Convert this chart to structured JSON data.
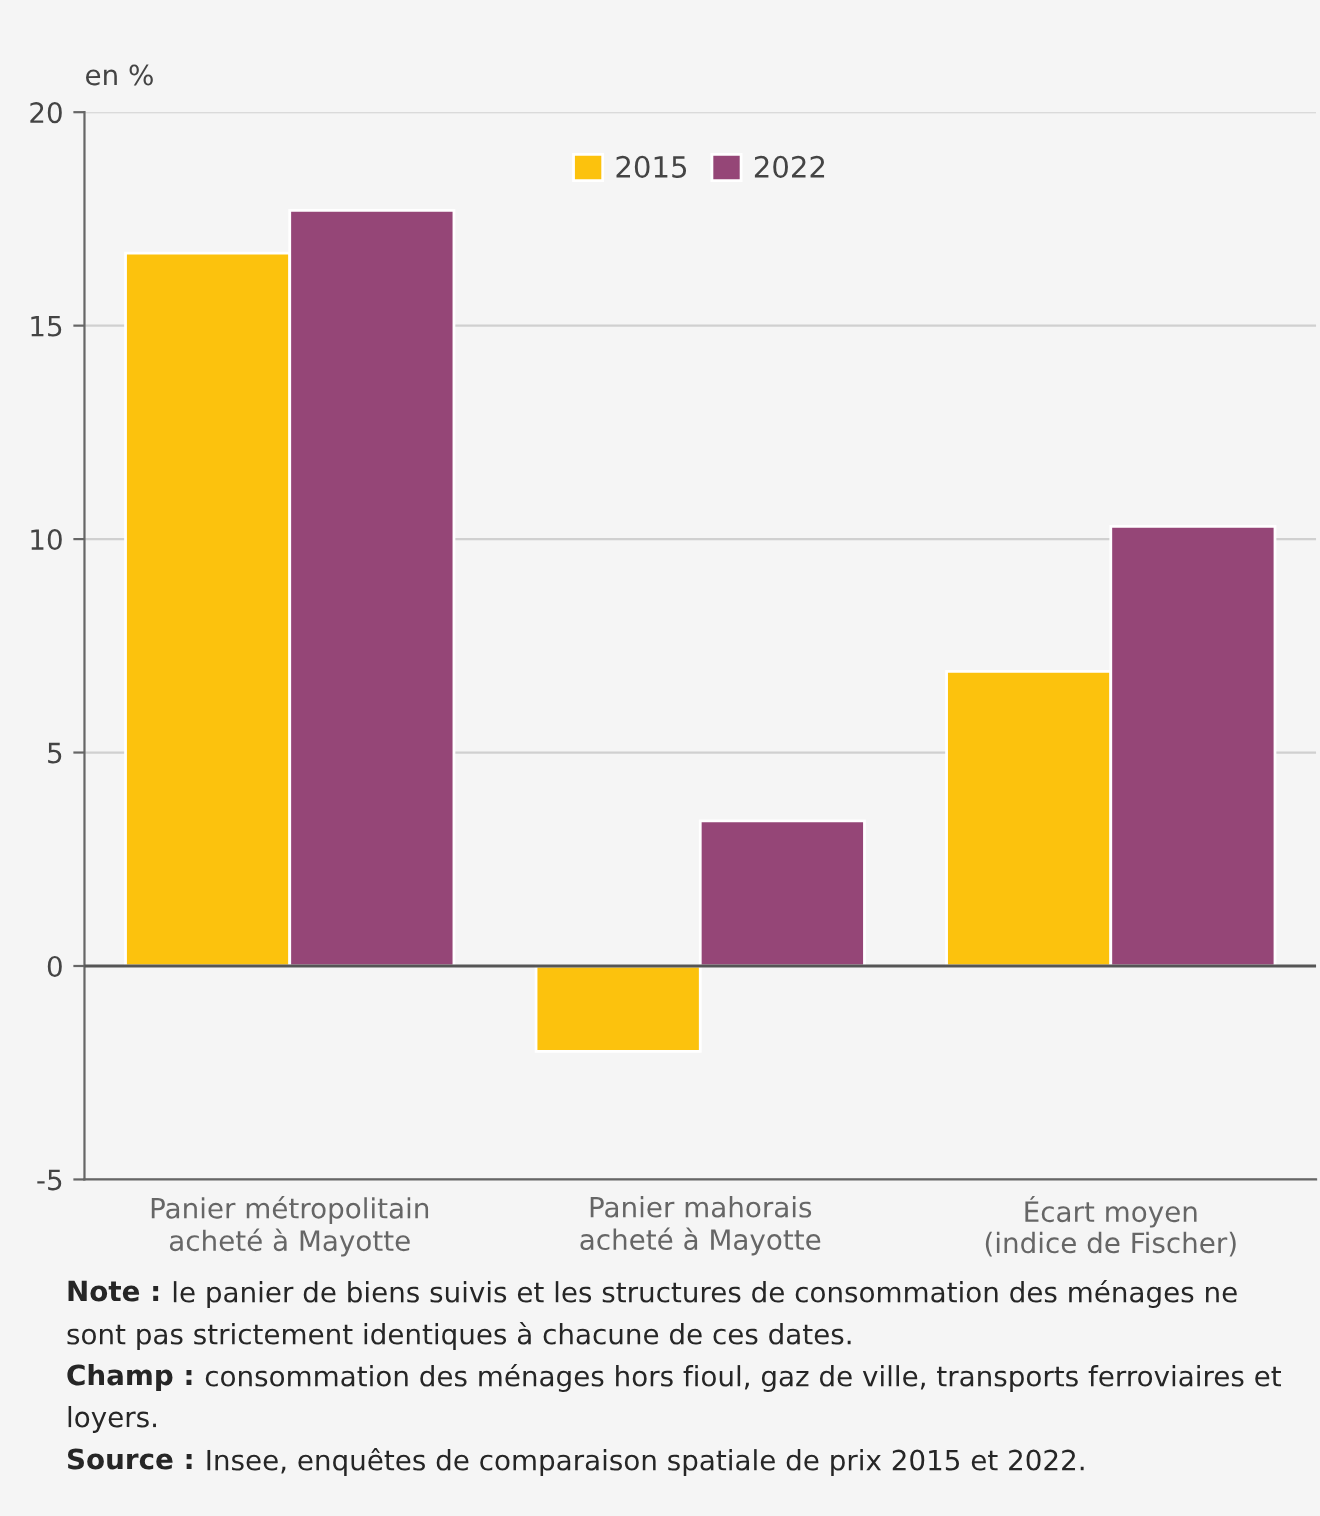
{
  "chart_data": {
    "type": "bar",
    "ylabel": "en %",
    "categories": [
      "Panier métropolitain\nacheté à Mayotte",
      "Panier mahorais\nacheté à Mayotte",
      "Écart moyen\n(indice de Fischer)"
    ],
    "series": [
      {
        "name": "2015",
        "color": "#fcc20d",
        "values": [
          16.7,
          -2.0,
          6.9
        ]
      },
      {
        "name": "2022",
        "color": "#954677",
        "values": [
          17.7,
          3.4,
          10.3
        ]
      }
    ],
    "ylim": [
      -5,
      20
    ],
    "yticks": [
      -5,
      0,
      5,
      10,
      15,
      20
    ],
    "grid": "y",
    "legend": "top",
    "annotations": [
      "Note : le panier de biens suivis et les structures de consommation des ménages ne sont pas strictement identiques à chacune de ces dates.",
      "Champ : consommation des ménages hors fioul, gaz de ville, transports ferroviaires et loyers.",
      "Source : Insee, enquêtes de comparaison spatiale de prix 2015 et 2022."
    ]
  }
}
